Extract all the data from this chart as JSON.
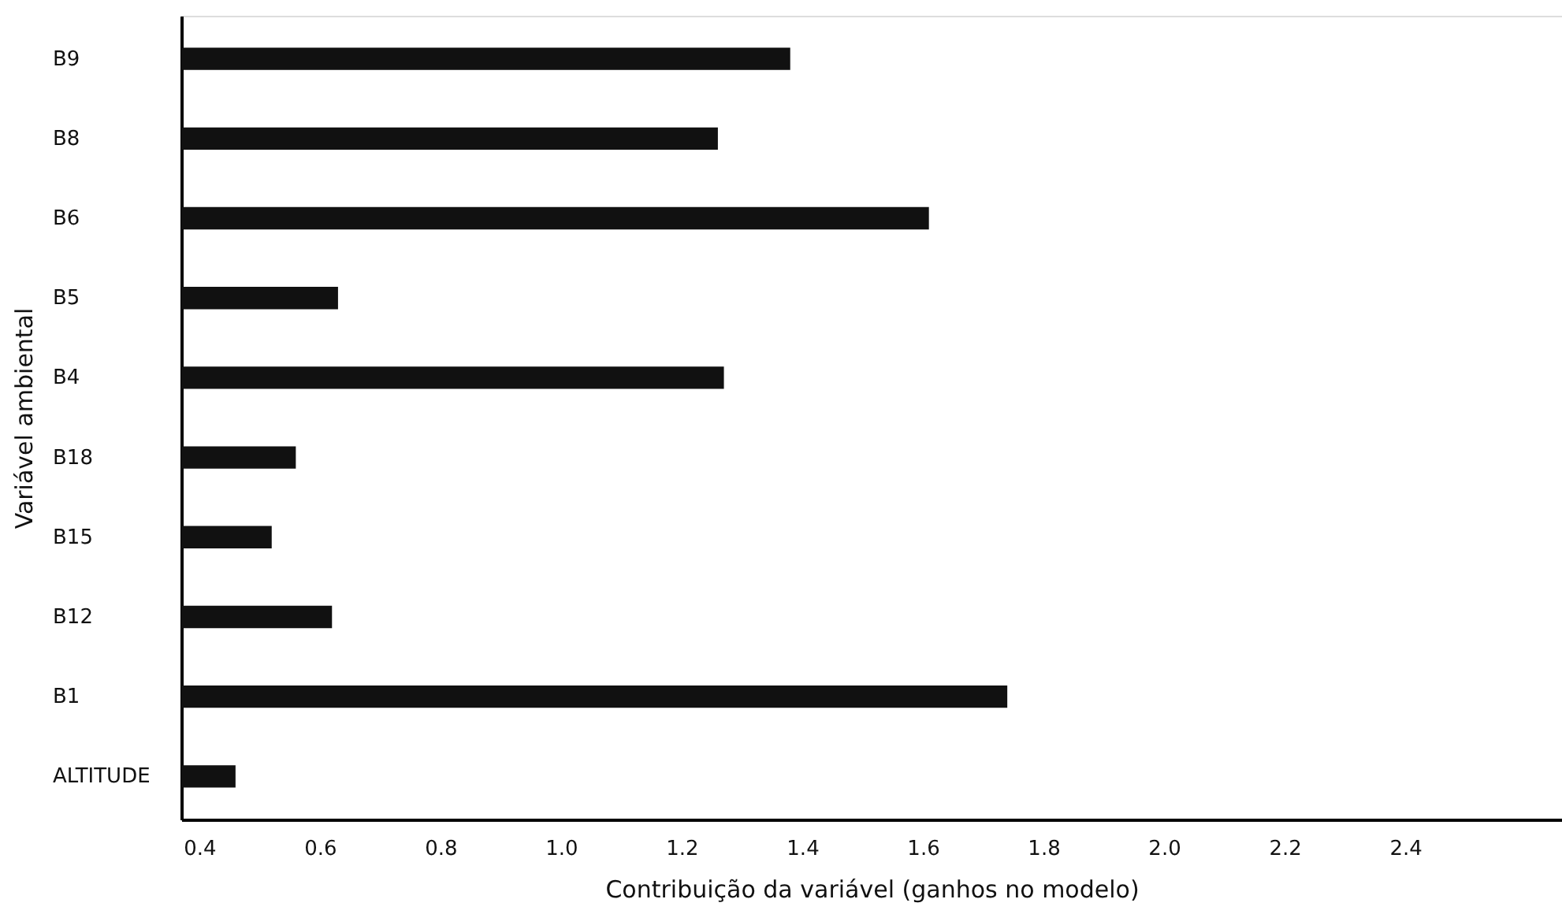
{
  "chart_data": {
    "type": "bar",
    "orientation": "horizontal",
    "xlabel": "Contribuição da variável (ganhos no modelo)",
    "ylabel": "Variável ambiental",
    "categories": [
      "B9",
      "B8",
      "B6",
      "B5",
      "B4",
      "B18",
      "B15",
      "B12",
      "B1",
      "ALTITUDE"
    ],
    "values": [
      1.38,
      1.26,
      1.61,
      0.63,
      1.27,
      0.56,
      0.52,
      0.62,
      1.74,
      0.46
    ],
    "color": "#111111",
    "xlim": [
      0.37,
      2.66
    ],
    "xticks": [
      0.4,
      0.6,
      0.8,
      {
        "value": 1,
        "label": "1.0"
      },
      1.2,
      1.4,
      1.6,
      1.8,
      {
        "value": 2,
        "label": "2.0"
      },
      2.2,
      2.4
    ],
    "grid": false
  }
}
